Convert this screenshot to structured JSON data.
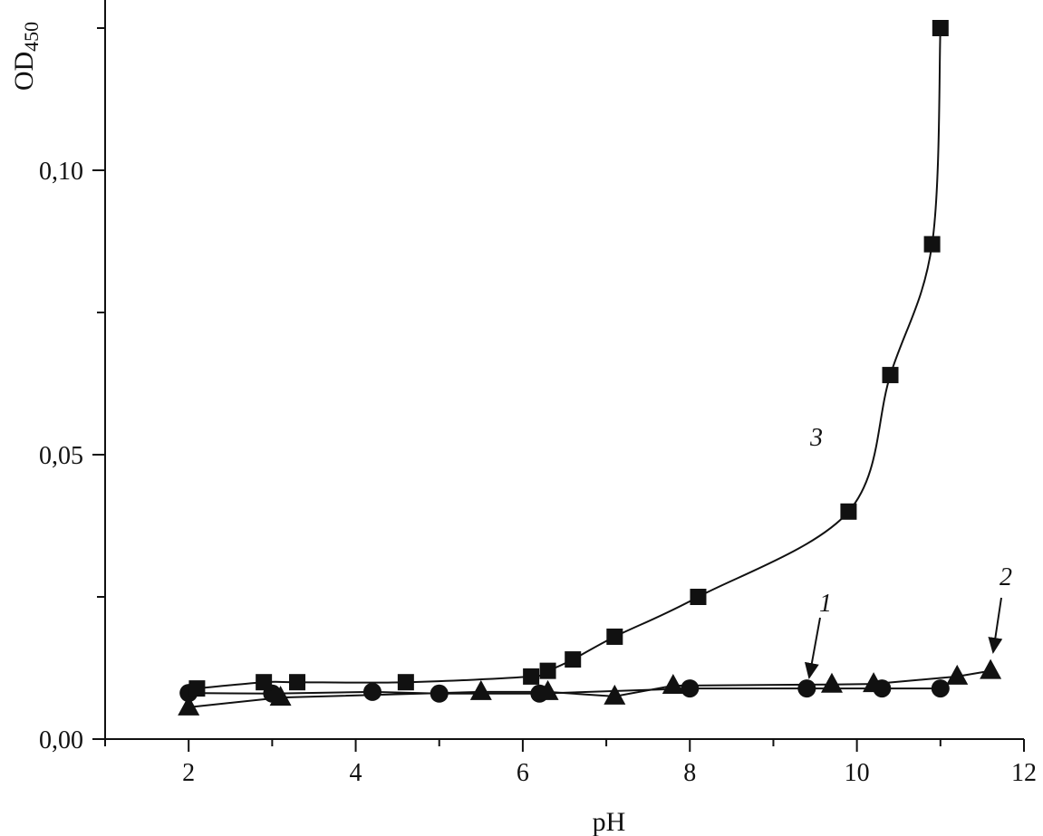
{
  "chart_data": {
    "type": "scatter",
    "title": "",
    "xlabel": "pH",
    "ylabel": "OD",
    "ylabel_subscript": "450",
    "xlim": [
      1,
      12
    ],
    "ylim": [
      0,
      0.13
    ],
    "grid": false,
    "x_ticks": [
      2,
      4,
      6,
      8,
      10,
      12
    ],
    "x_tick_labels": [
      "2",
      "4",
      "6",
      "8",
      "10",
      "12"
    ],
    "y_ticks": [
      0,
      0.05,
      0.1
    ],
    "y_tick_labels": [
      "0,00",
      "0,05",
      "0,10"
    ],
    "marker_color": "#111111",
    "series": [
      {
        "label": "1",
        "marker": "circle",
        "x": [
          2.0,
          3.0,
          4.2,
          5.0,
          6.2,
          8.0,
          9.4,
          10.3,
          11.0
        ],
        "y": [
          0.0081,
          0.008,
          0.0083,
          0.008,
          0.008,
          0.0089,
          0.0089,
          0.0089,
          0.0089
        ]
      },
      {
        "label": "2",
        "marker": "triangle",
        "x": [
          2.0,
          3.1,
          5.5,
          6.3,
          7.1,
          7.8,
          9.7,
          10.2,
          11.2,
          11.6
        ],
        "y": [
          0.0056,
          0.0073,
          0.0083,
          0.0083,
          0.0075,
          0.0094,
          0.0096,
          0.0097,
          0.011,
          0.012
        ]
      },
      {
        "label": "3",
        "marker": "square",
        "smooth": true,
        "x": [
          2.1,
          2.9,
          3.3,
          4.6,
          6.1,
          6.3,
          6.6,
          7.1,
          8.1,
          9.9,
          10.4,
          10.9,
          11.0
        ],
        "y": [
          0.0089,
          0.01,
          0.01,
          0.01,
          0.011,
          0.012,
          0.014,
          0.018,
          0.025,
          0.04,
          0.064,
          0.087,
          0.125
        ]
      }
    ]
  }
}
